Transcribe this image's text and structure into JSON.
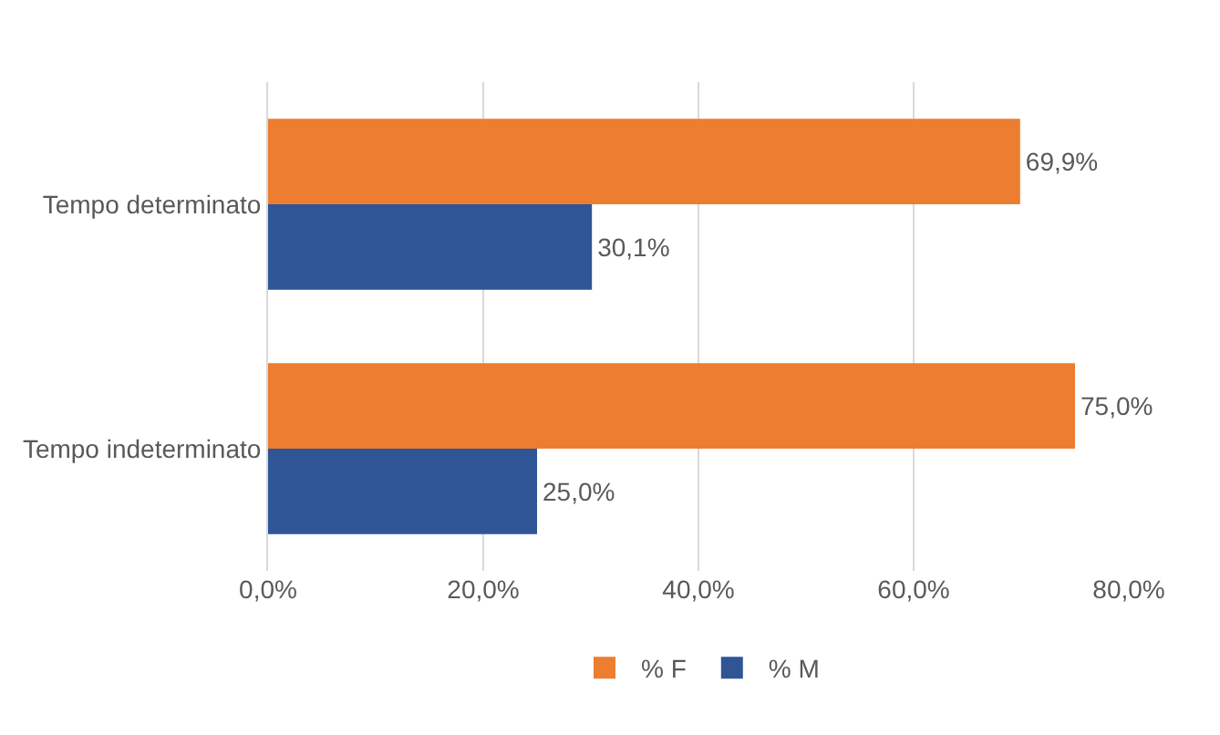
{
  "chart_data": {
    "type": "bar",
    "orientation": "horizontal",
    "categories": [
      "Tempo determinato",
      "Tempo indeterminato"
    ],
    "series": [
      {
        "name": "% F",
        "color": "#ed7d31",
        "values": [
          69.9,
          75.0
        ],
        "value_labels": [
          "69,9%",
          "75,0%"
        ]
      },
      {
        "name": "% M",
        "color": "#2f5597",
        "values": [
          30.1,
          25.0
        ],
        "value_labels": [
          "30,1%",
          "25,0%"
        ]
      }
    ],
    "xlim": [
      0,
      80
    ],
    "xticks": [
      {
        "value": 0,
        "label": "0,0%"
      },
      {
        "value": 20,
        "label": "20,0%"
      },
      {
        "value": 40,
        "label": "40,0%"
      },
      {
        "value": 60,
        "label": "60,0%"
      },
      {
        "value": 80,
        "label": "80,0%"
      }
    ],
    "grid": "x",
    "legend": "bottom"
  }
}
